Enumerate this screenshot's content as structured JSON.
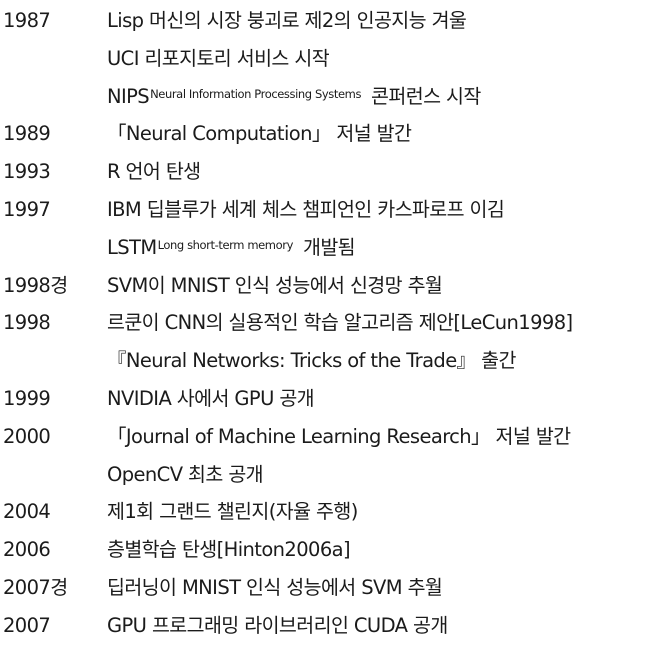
{
  "rows": [
    {
      "year": "1987",
      "text": "Lisp 머신의 시장 붕괴로 제2의 인공지능 겨울"
    },
    {
      "year": "",
      "text": "UCI 리포지토리 서비스 시작"
    },
    {
      "year": "",
      "text": "NIPS",
      "sup": "Neural Information Processing Systems",
      "after": "콘퍼런스 시작"
    },
    {
      "year": "1989",
      "text": "「Neural Computation」 저널 발간"
    },
    {
      "year": "1993",
      "text": "R 언어 탄생"
    },
    {
      "year": "1997",
      "text": "IBM 딥블루가 세계 체스 챔피언인 카스파로프 이김"
    },
    {
      "year": "",
      "text": "LSTM",
      "sup": "Long short-term memory",
      "after": "개발됨"
    },
    {
      "year": "1998경",
      "text": "SVM이 MNIST 인식 성능에서 신경망 추월"
    },
    {
      "year": "1998",
      "text": "르쿤이 CNN의 실용적인 학습 알고리즘 제안[LeCun1998]"
    },
    {
      "year": "",
      "text": "『Neural Networks: Tricks of the Trade』 출간"
    },
    {
      "year": "1999",
      "text": "NVIDIA 사에서 GPU 공개"
    },
    {
      "year": "2000",
      "text": "「Journal of Machine Learning Research」 저널 발간"
    },
    {
      "year": "",
      "text": "OpenCV 최초 공개"
    },
    {
      "year": "2004",
      "text": "제1회 그랜드 챌린지(자율 주행)"
    },
    {
      "year": "2006",
      "text": "층별학습 탄생[Hinton2006a]"
    },
    {
      "year": "2007경",
      "text": "딥러닝이 MNIST 인식 성능에서 SVM 추월"
    },
    {
      "year": "2007",
      "text": "GPU 프로그래밍 라이브러리인 CUDA 공개"
    }
  ]
}
